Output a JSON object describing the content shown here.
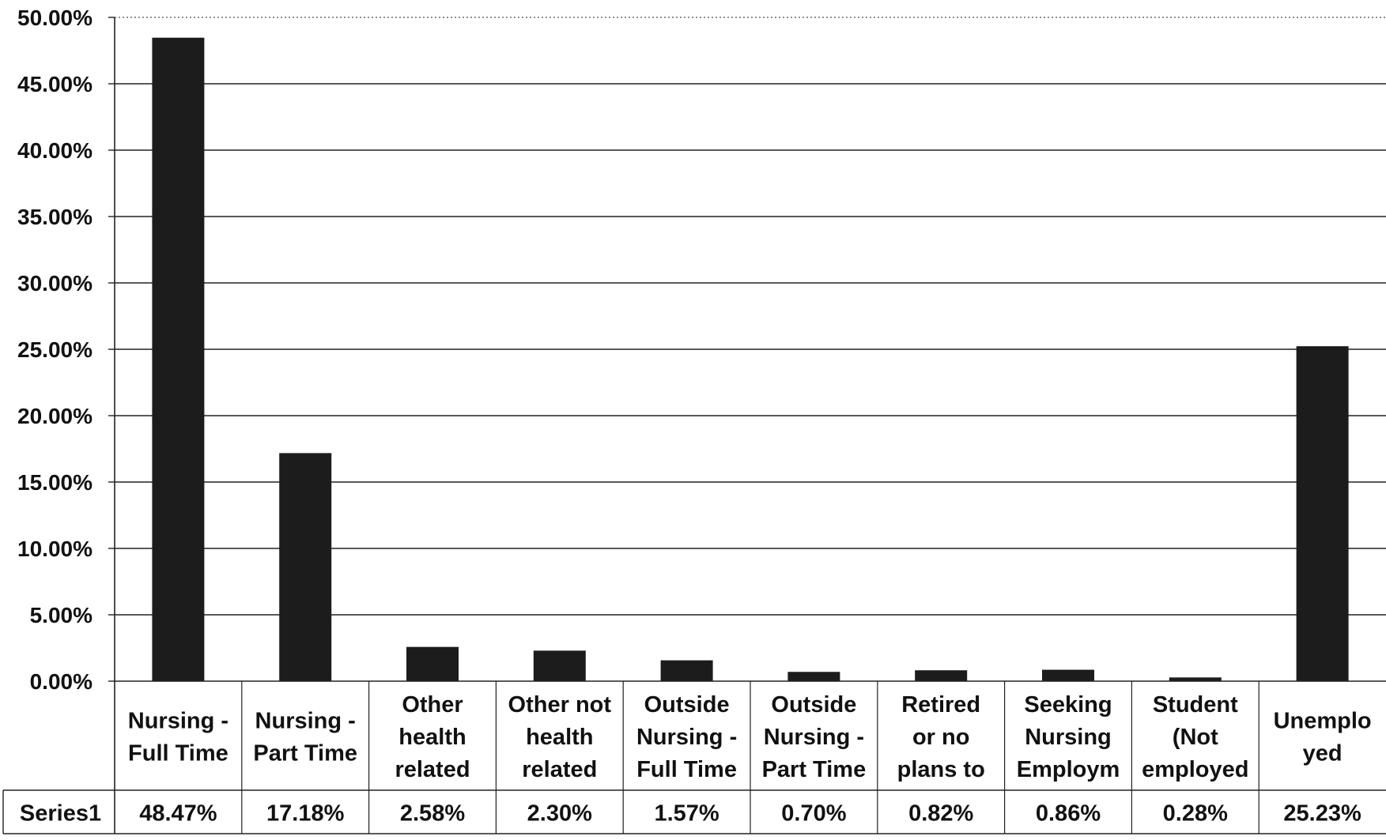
{
  "chart_data": {
    "type": "bar",
    "categories": [
      [
        "Nursing -",
        "Full Time"
      ],
      [
        "Nursing -",
        "Part Time"
      ],
      [
        "Other",
        "health",
        "related"
      ],
      [
        "Other not",
        "health",
        "related"
      ],
      [
        "Outside",
        "Nursing -",
        "Full Time"
      ],
      [
        "Outside",
        "Nursing -",
        "Part Time"
      ],
      [
        "Retired",
        "or no",
        "plans to"
      ],
      [
        "Seeking",
        "Nursing",
        "Employm"
      ],
      [
        "Student",
        "(Not",
        "employed"
      ],
      [
        "Unemplo",
        "yed"
      ]
    ],
    "series": [
      {
        "name": "Series1",
        "values": [
          48.47,
          17.18,
          2.58,
          2.3,
          1.57,
          0.7,
          0.82,
          0.86,
          0.28,
          25.23
        ],
        "labels": [
          "48.47%",
          "17.18%",
          "2.58%",
          "2.30%",
          "1.57%",
          "0.70%",
          "0.82%",
          "0.86%",
          "0.28%",
          "25.23%"
        ]
      }
    ],
    "yticks": [
      "0.00%",
      "5.00%",
      "10.00%",
      "15.00%",
      "20.00%",
      "25.00%",
      "30.00%",
      "35.00%",
      "40.00%",
      "45.00%",
      "50.00%"
    ],
    "ylim": [
      0,
      50
    ],
    "title": "",
    "xlabel": "",
    "ylabel": "",
    "grid": true,
    "legend": "none",
    "data_table": true,
    "colors": {
      "bar": "#1c1c1c",
      "grid": "#222222",
      "text": "#111111",
      "background": "#ffffff"
    }
  }
}
